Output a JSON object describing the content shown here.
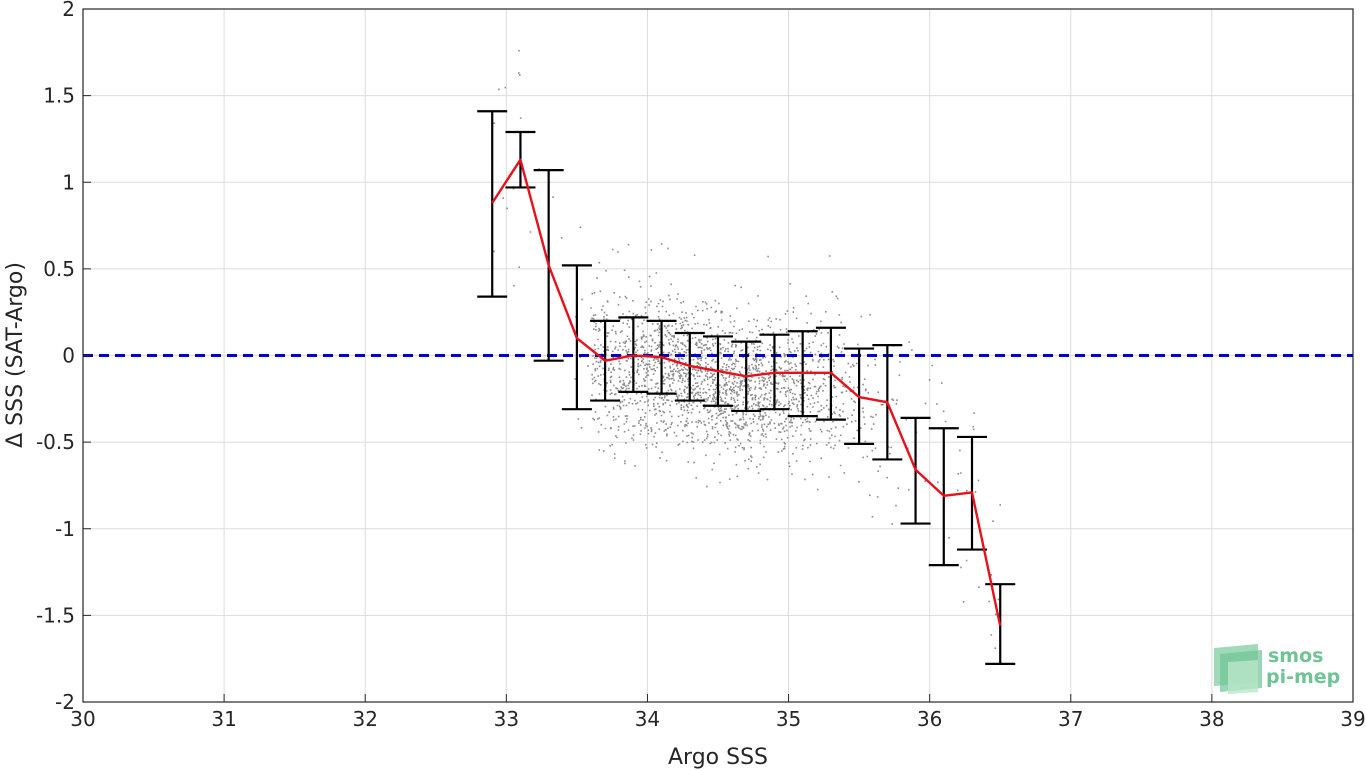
{
  "chart_data": {
    "type": "scatter",
    "xlabel": "Argo SSS",
    "ylabel": "Δ SSS (SAT-Argo)",
    "xlim": [
      30,
      39
    ],
    "ylim": [
      -2,
      2
    ],
    "x_ticks": [
      "30",
      "31",
      "32",
      "33",
      "34",
      "35",
      "36",
      "37",
      "38",
      "39"
    ],
    "y_ticks": [
      "2",
      "1.5",
      "1",
      "0.5",
      "0",
      "-0.5",
      "-1",
      "-1.5",
      "-2"
    ],
    "grid": true,
    "reference_line": {
      "y": 0,
      "style": "dashed",
      "color": "#0000cc"
    },
    "scatter_cloud": {
      "color": "#8c8c8c",
      "center_x": 34.5,
      "center_y": -0.15,
      "x_range": [
        33.5,
        36.3
      ],
      "y_range": [
        -1.3,
        1.2
      ]
    },
    "series": [
      {
        "color": "#e8111a",
        "bins": [
          32.9,
          33.1,
          33.3,
          33.5,
          33.7,
          33.9,
          34.1,
          34.3,
          34.5,
          34.7,
          34.9,
          35.1,
          35.3,
          35.5,
          35.7,
          35.9,
          36.1,
          36.3,
          36.5
        ],
        "mean": [
          0.88,
          1.13,
          0.52,
          0.1,
          -0.03,
          0.0,
          -0.01,
          -0.06,
          -0.09,
          -0.12,
          -0.1,
          -0.1,
          -0.1,
          -0.24,
          -0.27,
          -0.66,
          -0.81,
          -0.79,
          -1.56
        ],
        "err_low": [
          0.34,
          0.97,
          -0.03,
          -0.31,
          -0.26,
          -0.21,
          -0.22,
          -0.26,
          -0.29,
          -0.32,
          -0.31,
          -0.35,
          -0.37,
          -0.51,
          -0.6,
          -0.97,
          -1.21,
          -1.12,
          -1.78
        ],
        "err_high": [
          1.41,
          1.29,
          1.07,
          0.52,
          0.2,
          0.22,
          0.2,
          0.13,
          0.11,
          0.08,
          0.12,
          0.14,
          0.16,
          0.04,
          0.06,
          -0.36,
          -0.42,
          -0.47,
          -1.32
        ],
        "errorbar_color": "#000000"
      }
    ]
  },
  "logo": {
    "line1": "smos",
    "line2": "pi-mep",
    "color": "#6fc496"
  }
}
